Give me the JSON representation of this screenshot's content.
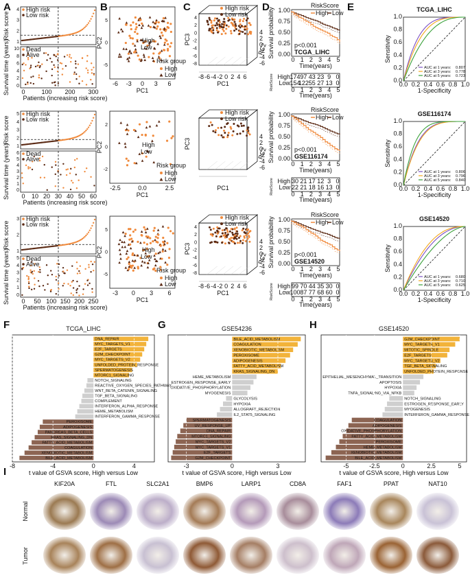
{
  "colors": {
    "high": "#f08a3c",
    "low": "#5b2a14",
    "orange_bar": "#f2b33a",
    "brown_bar": "#8c6452",
    "grey_bar": "#cfcfcf",
    "roc1": "#7b4fc4",
    "roc3": "#f2a81d",
    "roc5": "#3aa13a"
  },
  "panel_letters": [
    "A",
    "B",
    "C",
    "D",
    "E",
    "F",
    "G",
    "H",
    "I"
  ],
  "cohorts": [
    {
      "name": "TCGA_LIHC",
      "a": {
        "legend_high": "High risk",
        "legend_low": "Low risk",
        "legend_dead": "Dead",
        "legend_alive": "Alive",
        "ylabel_top": "Risk score",
        "ylabel_bottom": "Survival time (years)",
        "xlabel": "Patients (increasing risk score)",
        "yticks_top": [
          "1",
          "2",
          "3",
          "4"
        ],
        "yticks_bottom": [
          "0",
          "2",
          "4",
          "6",
          "8",
          "10"
        ],
        "xticks": [
          "0",
          "100",
          "200",
          "300"
        ],
        "n": 365,
        "cut": 182
      },
      "b": {
        "xlabel": "PC1",
        "ylabel": "PC2",
        "legend_title": "Risk group",
        "legend_high": "High",
        "legend_low": "Low",
        "xticks": [
          "-6",
          "-3",
          "0",
          "3",
          "6"
        ],
        "yticks": [
          "-5",
          "0",
          "5"
        ],
        "center_high": "High",
        "center_low": "Low"
      },
      "c": {
        "legend_high": "High risk",
        "legend_low": "Low risk",
        "xlabel": "PC1",
        "ylabel": "PC3",
        "zlabel": "PC2",
        "xticks": [
          "-8",
          "-6",
          "-4",
          "-2",
          "0",
          "2",
          "4",
          "6"
        ],
        "yticks": [
          "-8",
          "-6",
          "-4",
          "-2",
          "0",
          "2",
          "4"
        ],
        "zticks": [
          "4",
          "2",
          "0",
          "-2",
          "-4",
          "-6"
        ]
      },
      "d": {
        "legend_title": "RiskScore",
        "legend_high": "High",
        "legend_low": "Low",
        "ylabel": "Survival probability",
        "xlabel": "Time(years)",
        "pvalue": "p<0.001",
        "tag": "TCGA_LIHC",
        "risk_ylabel": "RiskScore",
        "xticks": [
          "0",
          "1",
          "2",
          "3",
          "4",
          "5"
        ],
        "yticks": [
          "0.00",
          "0.25",
          "0.50",
          "0.75",
          "1.00"
        ],
        "risk_high": [
          "174",
          "97",
          "43",
          "23",
          "9",
          "0"
        ],
        "risk_low": [
          "154",
          "122",
          "55",
          "27",
          "13",
          "0"
        ]
      },
      "e": {
        "title": "TCGA_LIHC",
        "xlabel": "1-Specificity",
        "ylabel": "Sensitivity",
        "ticks": [
          "0.0",
          "0.2",
          "0.4",
          "0.6",
          "0.8",
          "1.0"
        ],
        "auc": [
          {
            "label": "AUC at 1 years:",
            "value": "0.807"
          },
          {
            "label": "AUC at 3 years:",
            "value": "0.778"
          },
          {
            "label": "AUC at 5 years:",
            "value": "0.723"
          }
        ]
      }
    },
    {
      "name": "GSE116174",
      "a": {
        "legend_high": "High risk",
        "legend_low": "Low risk",
        "legend_dead": "Dead",
        "legend_alive": "Alive",
        "ylabel_top": "Risk score",
        "ylabel_bottom": "Survival time (years)",
        "xlabel": "Patients (increasing risk score)",
        "yticks_top": [
          "1",
          "2",
          "3",
          "4",
          "5"
        ],
        "yticks_bottom": [
          "0",
          "1",
          "2",
          "3",
          "4",
          "5",
          "6"
        ],
        "xticks": [
          "0",
          "10",
          "20",
          "30",
          "40",
          "50",
          "60"
        ],
        "n": 64,
        "cut": 32
      },
      "b": {
        "xlabel": "PC1",
        "ylabel": "PC2",
        "legend_title": "Risk group",
        "legend_high": "High",
        "legend_low": "Low",
        "xticks": [
          "-2.5",
          "0.0",
          "2.5"
        ],
        "yticks": [
          "-2",
          "0",
          "2"
        ],
        "center_high": "High",
        "center_low": "Low"
      },
      "c": {
        "legend_high": "High risk",
        "legend_low": "Low risk",
        "xlabel": "PC1",
        "ylabel": "PC3",
        "zlabel": "PC2",
        "xticks": [],
        "yticks": [],
        "zticks": [
          "4",
          "2",
          "0",
          "-2",
          "-4",
          "-6"
        ]
      },
      "d": {
        "legend_title": "RiskScore",
        "legend_high": "High",
        "legend_low": "Low",
        "ylabel": "Survival probability",
        "xlabel": "Time(years)",
        "pvalue": "p<0.001",
        "tag": "GSE116174",
        "risk_ylabel": "RiskScore",
        "xticks": [
          "0",
          "1",
          "2",
          "3",
          "4",
          "5"
        ],
        "yticks": [
          "0.00",
          "0.25",
          "0.50",
          "0.75",
          "1.00"
        ],
        "risk_high": [
          "30",
          "21",
          "17",
          "12",
          "3",
          "0"
        ],
        "risk_low": [
          "22",
          "21",
          "18",
          "16",
          "13",
          "0"
        ]
      },
      "e": {
        "title": "GSE116174",
        "xlabel": "1-Specificity",
        "ylabel": "Sensitivity",
        "ticks": [
          "0.0",
          "0.2",
          "0.4",
          "0.6",
          "0.8",
          "1.0"
        ],
        "auc": [
          {
            "label": "AUC at 1 years:",
            "value": "0.806"
          },
          {
            "label": "AUC at 3 years:",
            "value": "0.796"
          },
          {
            "label": "AUC at 5 years:",
            "value": "0.840"
          }
        ]
      }
    },
    {
      "name": "GSE14520",
      "a": {
        "legend_high": "High risk",
        "legend_low": "Low risk",
        "legend_dead": "Dead",
        "legend_alive": "Alive",
        "ylabel_top": "Risk score",
        "ylabel_bottom": "Survival time (years)",
        "xlabel": "Patients (increasing risk score)",
        "yticks_top": [
          "1",
          "2",
          "3"
        ],
        "yticks_bottom": [
          "0",
          "1",
          "2",
          "3",
          "4",
          "5"
        ],
        "xticks": [
          "0",
          "50",
          "100",
          "150",
          "200",
          "250"
        ],
        "n": 242,
        "cut": 121
      },
      "b": {
        "xlabel": "PC1",
        "ylabel": "PC2",
        "legend_title": "Risk group",
        "legend_high": "High",
        "legend_low": "Low",
        "xticks": [
          "-3",
          "0",
          "3",
          "6"
        ],
        "yticks": [
          "-5",
          "0",
          "5"
        ],
        "center_high": "High",
        "center_low": "Low"
      },
      "c": {
        "legend_high": "High risk",
        "legend_low": "Low risk",
        "xlabel": "PC1",
        "ylabel": "PC3",
        "zlabel": "PC2",
        "xticks": [
          "-8",
          "-6",
          "-4",
          "-2",
          "0",
          "2",
          "4",
          "6"
        ],
        "yticks": [
          "-8",
          "-6",
          "-4",
          "-2",
          "0",
          "2",
          "4"
        ],
        "zticks": [
          "4",
          "2",
          "0",
          "-2",
          "-4",
          "-6"
        ]
      },
      "d": {
        "legend_title": "RiskScore",
        "legend_high": "High",
        "legend_low": "Low",
        "ylabel": "Survival probability",
        "xlabel": "Time(years)",
        "pvalue": "p<0.001",
        "tag": "GSE14520",
        "risk_ylabel": "RiskScore",
        "xticks": [
          "0",
          "1",
          "2",
          "3",
          "4",
          "5"
        ],
        "yticks": [
          "0.00",
          "0.25",
          "0.50",
          "0.75",
          "1.00"
        ],
        "risk_high": [
          "99",
          "70",
          "44",
          "35",
          "30",
          "0"
        ],
        "risk_low": [
          "100",
          "87",
          "77",
          "68",
          "60",
          "0"
        ]
      },
      "e": {
        "title": "GSE14520",
        "xlabel": "1-Specificity",
        "ylabel": "Sensitivity",
        "ticks": [
          "0.0",
          "0.2",
          "0.4",
          "0.6",
          "0.8",
          "1.0"
        ],
        "auc": [
          {
            "label": "AUC at 1 years:",
            "value": "0.680"
          },
          {
            "label": "AUC at 3 years:",
            "value": "0.710"
          },
          {
            "label": "AUC at 5 years:",
            "value": "0.625"
          }
        ]
      }
    }
  ],
  "gsva": [
    {
      "title": "TCGA_LIHC",
      "xlabel": "t value of GSVA score, High versus Low",
      "xticks": [
        -8,
        -4,
        0,
        4
      ],
      "xmin": -8,
      "xmax": 6,
      "bars": [
        {
          "name": "DNA_REPAIR",
          "t": 5.4,
          "g": "up"
        },
        {
          "name": "MYC_TARGETS_V1",
          "t": 5.2,
          "g": "up"
        },
        {
          "name": "E2F_TARGETS",
          "t": 5.0,
          "g": "up"
        },
        {
          "name": "G2M_CHECKPOINT",
          "t": 4.8,
          "g": "up"
        },
        {
          "name": "MYC_TARGETS_V2",
          "t": 4.6,
          "g": "up"
        },
        {
          "name": "UNFOLDED_PROTEIN_RESPONSE",
          "t": 4.3,
          "g": "up"
        },
        {
          "name": "SPERMATOGENESIS",
          "t": 3.8,
          "g": "up"
        },
        {
          "name": "MTORC1_SIGNALING",
          "t": 3.5,
          "g": "up"
        },
        {
          "name": "NOTCH_SIGNALING",
          "t": -0.6,
          "g": "ns"
        },
        {
          "name": "REACTIVE_OXYGEN_SPECIES_PATHWAY",
          "t": -0.7,
          "g": "ns"
        },
        {
          "name": "WNT_BETA_CATENIN_SIGNALING",
          "t": -0.9,
          "g": "ns"
        },
        {
          "name": "TGF_BETA_SIGNALING",
          "t": -1.1,
          "g": "ns"
        },
        {
          "name": "COMPLEMENT",
          "t": -1.2,
          "g": "ns"
        },
        {
          "name": "INTERFERON_ALPHA_RESPONSE",
          "t": -1.4,
          "g": "ns"
        },
        {
          "name": "HEME_METABOLISM",
          "t": -1.6,
          "g": "ns"
        },
        {
          "name": "INTERFERON_GAMMA_RESPONSE",
          "t": -1.8,
          "g": "ns"
        },
        {
          "name": "PEROXISOME",
          "t": -5.0,
          "g": "down"
        },
        {
          "name": "ADIPOGENESIS",
          "t": -5.3,
          "g": "down"
        },
        {
          "name": "PANCREAS_BETA_CELLS",
          "t": -5.5,
          "g": "down"
        },
        {
          "name": "KRAS_SIGNALING_DN",
          "t": -5.8,
          "g": "down"
        },
        {
          "name": "FATTY_ACID_METABOLISM",
          "t": -6.1,
          "g": "down"
        },
        {
          "name": "COAGULATION",
          "t": -6.4,
          "g": "down"
        },
        {
          "name": "XENOBIOTIC_METABOLISM",
          "t": -6.8,
          "g": "down"
        },
        {
          "name": "BILE_ACID_METABOLISM",
          "t": -7.3,
          "g": "down"
        }
      ]
    },
    {
      "title": "GSE54236",
      "xlabel": "t value of GSVA score, High versus Low",
      "xticks": [
        -3,
        0,
        3
      ],
      "xmin": -4.2,
      "xmax": 4.8,
      "bars": [
        {
          "name": "BILE_ACID_METABOLISM",
          "t": 4.5,
          "g": "up"
        },
        {
          "name": "COAGULATION",
          "t": 4.3,
          "g": "up"
        },
        {
          "name": "XENOBIOTIC_METABOLISM",
          "t": 4.0,
          "g": "up"
        },
        {
          "name": "PEROXISOME",
          "t": 3.8,
          "g": "up"
        },
        {
          "name": "ADIPOGENESIS",
          "t": 3.5,
          "g": "up"
        },
        {
          "name": "FATTY_ACID_METABOLISM",
          "t": 3.2,
          "g": "up"
        },
        {
          "name": "KRAS_SIGNALING_DN",
          "t": 3.0,
          "g": "up"
        },
        {
          "name": "HEME_METABOLISM",
          "t": 1.6,
          "g": "ns"
        },
        {
          "name": "ESTROGEN_RESPONSE_EARLY",
          "t": 1.4,
          "g": "ns"
        },
        {
          "name": "OXIDATIVE_PHOSPHORYLATION",
          "t": 1.2,
          "g": "ns"
        },
        {
          "name": "MYOGENESIS",
          "t": 1.0,
          "g": "ns"
        },
        {
          "name": "GLYCOLYSIS",
          "t": -0.4,
          "g": "ns"
        },
        {
          "name": "HYPOXIA",
          "t": -0.6,
          "g": "ns"
        },
        {
          "name": "ALLOGRAFT_REJECTION",
          "t": -0.8,
          "g": "ns"
        },
        {
          "name": "IL2_STAT5_SIGNALING",
          "t": -1.0,
          "g": "ns"
        },
        {
          "name": "SPERMATOGENESIS",
          "t": -3.0,
          "g": "down"
        },
        {
          "name": "UV_RESPONSE_UP",
          "t": -3.2,
          "g": "down"
        },
        {
          "name": "DNA_REPAIR",
          "t": -3.4,
          "g": "down"
        },
        {
          "name": "MTORC1_SIGNALING",
          "t": -3.6,
          "g": "down"
        },
        {
          "name": "MYC_TARGETS_V2",
          "t": -3.7,
          "g": "down"
        },
        {
          "name": "MYC_TARGETS_V1",
          "t": -3.8,
          "g": "down"
        },
        {
          "name": "E2F_TARGETS",
          "t": -3.9,
          "g": "down"
        },
        {
          "name": "G2M_CHECKPOINT",
          "t": -4.0,
          "g": "down"
        }
      ]
    },
    {
      "title": "GSE14520",
      "xlabel": "t value of GSVA score, High versus Low",
      "xticks": [
        -5.0,
        -2.5,
        0.0,
        2.5,
        5.0
      ],
      "xmin": -7.2,
      "xmax": 5.6,
      "bars": [
        {
          "name": "G2M_CHECKPOINT",
          "t": 5.0,
          "g": "up"
        },
        {
          "name": "MYC_TARGETS_V1",
          "t": 4.6,
          "g": "up"
        },
        {
          "name": "MITOTIC_SPINDLE",
          "t": 4.1,
          "g": "up"
        },
        {
          "name": "E2F_TARGETS",
          "t": 3.9,
          "g": "up"
        },
        {
          "name": "MYC_TARGETS_V2",
          "t": 3.3,
          "g": "up"
        },
        {
          "name": "TGF_BETA_SIGNALING",
          "t": 2.9,
          "g": "up"
        },
        {
          "name": "UNFOLDED_PROTEIN_RESPONSE",
          "t": 2.7,
          "g": "up"
        },
        {
          "name": "EPITHELIAL_MESENCHYMAL_TRANSITION",
          "t": 1.8,
          "g": "ns"
        },
        {
          "name": "APOPTOSIS",
          "t": 1.5,
          "g": "ns"
        },
        {
          "name": "HYPOXIA",
          "t": 1.2,
          "g": "ns"
        },
        {
          "name": "TNFA_SIGNALING_VIA_NFKB",
          "t": 1.0,
          "g": "ns"
        },
        {
          "name": "NOTCH_SIGNALING",
          "t": -1.2,
          "g": "ns"
        },
        {
          "name": "ESTROGEN_RESPONSE_EARLY",
          "t": -1.4,
          "g": "ns"
        },
        {
          "name": "MYOGENESIS",
          "t": -1.6,
          "g": "ns"
        },
        {
          "name": "INTERFERON_GAMMA_RESPONSE",
          "t": -1.8,
          "g": "ns"
        },
        {
          "name": "COAGULATION",
          "t": -4.5,
          "g": "down"
        },
        {
          "name": "ADIPOGENESIS",
          "t": -4.8,
          "g": "down"
        },
        {
          "name": "OXIDATIVE_PHOSPHORYLATION",
          "t": -5.0,
          "g": "down"
        },
        {
          "name": "FATTY_ACID_METABOLISM",
          "t": -5.3,
          "g": "down"
        },
        {
          "name": "PEROXISOME",
          "t": -5.6,
          "g": "down"
        },
        {
          "name": "HEME_METABOLISM",
          "t": -5.9,
          "g": "down"
        },
        {
          "name": "XENOBIOTIC_METABOLISM",
          "t": -6.3,
          "g": "down"
        },
        {
          "name": "BILE_ACID_METABOLISM",
          "t": -6.8,
          "g": "down"
        }
      ]
    }
  ],
  "ihc": {
    "row_labels": [
      "Normal",
      "Tumor"
    ],
    "genes": [
      "KIF20A",
      "FTL",
      "SLC2A1",
      "BMP6",
      "LARP1",
      "CD8A",
      "FAF1",
      "PPAT",
      "NAT10"
    ],
    "normal_colors": [
      "#9b7a52",
      "#9c8ab6",
      "#bcaec9",
      "#a47b56",
      "#b49ab9",
      "#a88d9b",
      "#8c7bb8",
      "#a8865c",
      "#c9c2d6"
    ],
    "tumor_colors": [
      "#a8835a",
      "#9e6f45",
      "#c8c0d2",
      "#8f5a36",
      "#a57e64",
      "#cdbfcc",
      "#bfa7b8",
      "#9a6334",
      "#8b5a3a"
    ]
  }
}
